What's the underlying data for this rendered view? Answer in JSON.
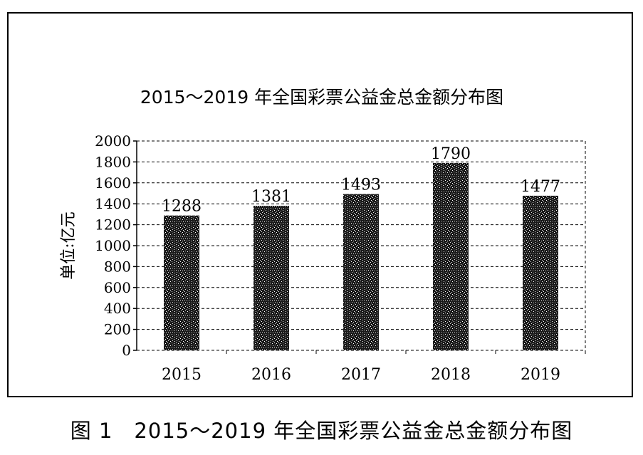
{
  "chart_data": {
    "type": "bar",
    "title": "2015～2019 年全国彩票公益金总金额分布图",
    "ylabel": "单位:亿元",
    "xlabel": "",
    "categories": [
      "2015",
      "2016",
      "2017",
      "2018",
      "2019"
    ],
    "values": [
      1288,
      1381,
      1493,
      1790,
      1477
    ],
    "value_labels": [
      "1288",
      "1381",
      "1493",
      "1790",
      "1477"
    ],
    "ylim": [
      0,
      2000
    ],
    "yticks": [
      "0",
      "200",
      "400",
      "600",
      "800",
      "1000",
      "1200",
      "1400",
      "1600",
      "1800",
      "2000"
    ],
    "grid": true,
    "legend": "none"
  },
  "caption": "图 1　2015～2019 年全国彩票公益金总金额分布图",
  "colors": {
    "bar": "#000000",
    "bar_speckle": "#ffffff",
    "grid": "#000000"
  }
}
